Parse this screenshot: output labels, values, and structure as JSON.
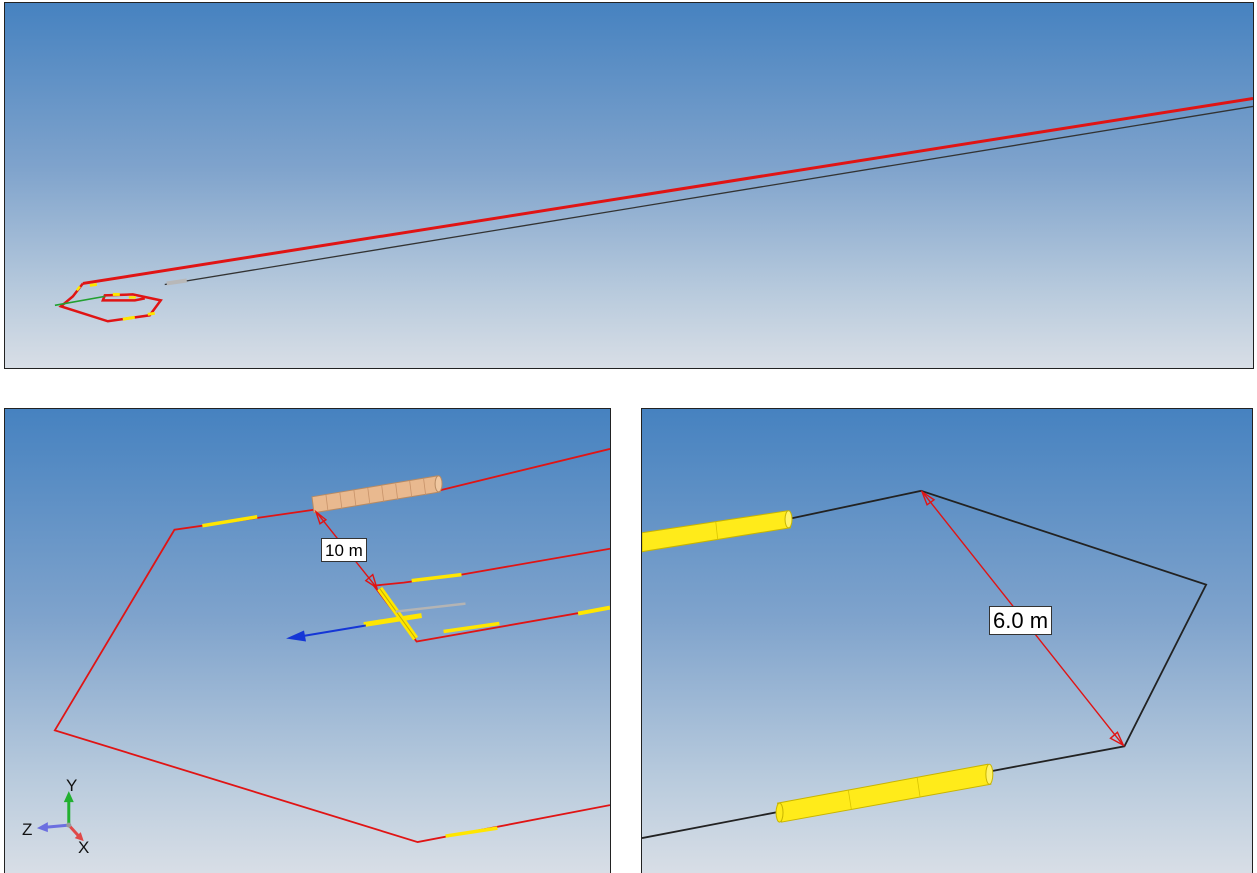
{
  "viewports": {
    "top": {
      "name": "overview-viewport"
    },
    "bottom_left": {
      "name": "detail-viewport-left",
      "dimension_label": "10 m",
      "triad": {
        "y": "Y",
        "z": "Z",
        "x": "X"
      }
    },
    "bottom_right": {
      "name": "detail-viewport-right",
      "dimension_label": "6.0 m"
    }
  },
  "colors": {
    "background_top": "#4682c0",
    "background_bottom": "#d8dee6",
    "line_red": "#e01414",
    "line_dark": "#2a2a2a",
    "float_yellow": "#ffe600",
    "buoy_tan": "#e8b78c",
    "axis_blue": "#1536d6",
    "axis_green": "#22b030"
  }
}
